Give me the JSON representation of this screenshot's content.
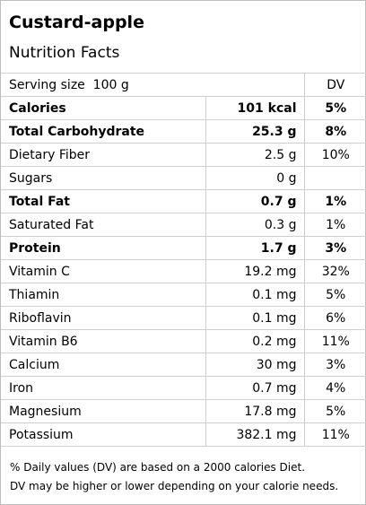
{
  "header": {
    "title": "Custard-apple",
    "subtitle": "Nutrition Facts"
  },
  "table": {
    "serving_label": "Serving size  100 g",
    "dv_header": "DV",
    "rows": [
      {
        "name": "Calories",
        "amount": "101 kcal",
        "dv": "5%",
        "bold": true
      },
      {
        "name": "Total Carbohydrate",
        "amount": "25.3 g",
        "dv": "8%",
        "bold": true
      },
      {
        "name": "Dietary Fiber",
        "amount": "2.5 g",
        "dv": "10%",
        "bold": false
      },
      {
        "name": "Sugars",
        "amount": "0 g",
        "dv": "",
        "bold": false
      },
      {
        "name": "Total Fat",
        "amount": "0.7 g",
        "dv": "1%",
        "bold": true
      },
      {
        "name": "Saturated Fat",
        "amount": "0.3 g",
        "dv": "1%",
        "bold": false
      },
      {
        "name": "Protein",
        "amount": "1.7 g",
        "dv": "3%",
        "bold": true
      },
      {
        "name": "Vitamin C",
        "amount": "19.2 mg",
        "dv": "32%",
        "bold": false
      },
      {
        "name": "Thiamin",
        "amount": "0.1 mg",
        "dv": "5%",
        "bold": false
      },
      {
        "name": "Riboflavin",
        "amount": "0.1 mg",
        "dv": "6%",
        "bold": false
      },
      {
        "name": "Vitamin B6",
        "amount": "0.2 mg",
        "dv": "11%",
        "bold": false
      },
      {
        "name": "Calcium",
        "amount": "30 mg",
        "dv": "3%",
        "bold": false
      },
      {
        "name": "Iron",
        "amount": "0.7 mg",
        "dv": "4%",
        "bold": false
      },
      {
        "name": "Magnesium",
        "amount": "17.8 mg",
        "dv": "5%",
        "bold": false
      },
      {
        "name": "Potassium",
        "amount": "382.1 mg",
        "dv": "11%",
        "bold": false
      }
    ]
  },
  "footnote": {
    "line1": "% Daily values (DV) are based on a 2000 calories Diet.",
    "line2": "DV may be higher or lower depending on your calorie needs."
  }
}
